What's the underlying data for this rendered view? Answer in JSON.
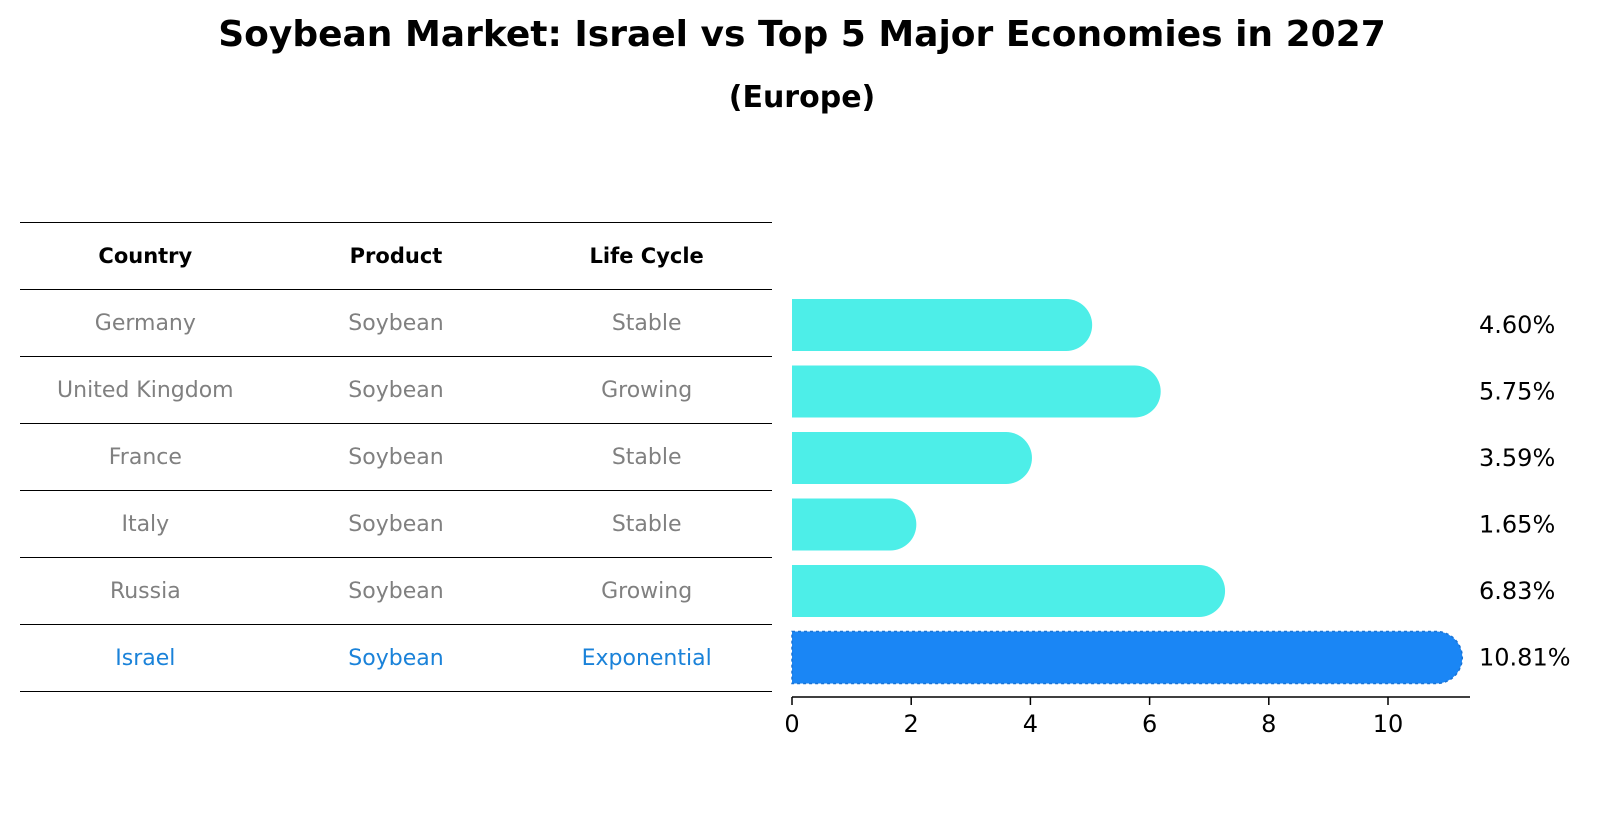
{
  "chart_data": {
    "type": "bar",
    "orientation": "horizontal",
    "title": "Soybean Market: Israel vs Top 5 Major Economies in 2027",
    "subtitle": "(Europe)",
    "xlabel": "",
    "ylabel": "",
    "xlim": [
      0,
      11.35
    ],
    "xticks": [
      0,
      2,
      4,
      6,
      8,
      10
    ],
    "categories": [
      "Germany",
      "United Kingdom",
      "France",
      "Italy",
      "Russia",
      "Israel"
    ],
    "values": [
      4.6,
      5.75,
      3.59,
      1.65,
      6.83,
      10.81
    ],
    "value_labels": [
      "4.60%",
      "5.75%",
      "3.59%",
      "1.65%",
      "6.83%",
      "10.81%"
    ],
    "highlight": "Israel",
    "colors": {
      "bar": "#4deee8",
      "highlight_bar": "#1a86f5",
      "highlight_text": "#1a82d9",
      "table_text": "#808080"
    }
  },
  "table": {
    "headers": [
      "Country",
      "Product",
      "Life Cycle"
    ],
    "rows": [
      [
        "Germany",
        "Soybean",
        "Stable"
      ],
      [
        "United Kingdom",
        "Soybean",
        "Growing"
      ],
      [
        "France",
        "Soybean",
        "Stable"
      ],
      [
        "Italy",
        "Soybean",
        "Stable"
      ],
      [
        "Russia",
        "Soybean",
        "Growing"
      ],
      [
        "Israel",
        "Soybean",
        "Exponential"
      ]
    ],
    "highlight_row": 5
  }
}
